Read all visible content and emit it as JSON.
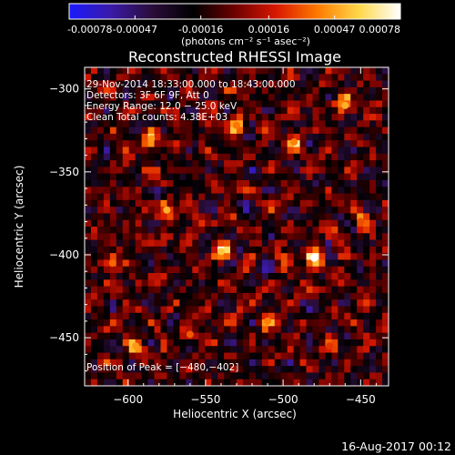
{
  "colors": {
    "background": "#000000",
    "text": "#ffffff",
    "colormap": [
      "#1a1aff",
      "#3a1aa8",
      "#2a0d3a",
      "#000000",
      "#6e0000",
      "#d81800",
      "#ff7a00",
      "#ffd84a",
      "#ffffff"
    ]
  },
  "colorbar": {
    "ticks": [
      "-0.00078",
      "-0.00047",
      "-0.00016",
      "0.00016",
      "0.00047",
      "0.00078"
    ],
    "units_label": "(photons cm⁻² s⁻¹ asec⁻²)",
    "range": [
      -0.00078,
      0.00078
    ]
  },
  "chart_data": {
    "type": "heatmap",
    "title": "Reconstructed RHESSI Image",
    "xlabel": "Heliocentric X (arcsec)",
    "ylabel": "Heliocentric Y (arcsec)",
    "xlim": [
      -628,
      -432
    ],
    "ylim": [
      -479,
      -287
    ],
    "x_ticks": [
      -600,
      -550,
      -500,
      -450
    ],
    "y_ticks": [
      -300,
      -350,
      -400,
      -450
    ],
    "x_tick_labels": [
      "−600",
      "−550",
      "−500",
      "−450"
    ],
    "y_tick_labels": [
      "−300",
      "−350",
      "−400",
      "−450"
    ],
    "info_lines": [
      "29-Nov-2014 18:33:00.000 to 18:43:00.000",
      "Detectors: 3F 6F 9F, Att 0",
      "Energy Range: 12.0 − 25.0 keV",
      "Clean     Total counts: 4.38E+03"
    ],
    "peak_label": "Position of Peak = [−480,−402]",
    "peak": {
      "x": -480,
      "y": -402
    },
    "hot_spots": [
      {
        "x": -480,
        "y": -402,
        "value": 0.00078
      },
      {
        "x": -575,
        "y": -373,
        "value": 0.0005
      },
      {
        "x": -540,
        "y": -398,
        "value": 0.00055
      },
      {
        "x": -460,
        "y": -310,
        "value": 0.0005
      },
      {
        "x": -493,
        "y": -332,
        "value": 0.0004
      },
      {
        "x": -530,
        "y": -322,
        "value": 0.00038
      },
      {
        "x": -585,
        "y": -330,
        "value": 0.00045
      },
      {
        "x": -595,
        "y": -455,
        "value": 0.00045
      },
      {
        "x": -510,
        "y": -440,
        "value": 0.0004
      },
      {
        "x": -610,
        "y": -405,
        "value": 0.00035
      },
      {
        "x": -560,
        "y": -448,
        "value": 0.00032
      },
      {
        "x": -450,
        "y": -380,
        "value": 0.0003
      },
      {
        "x": -470,
        "y": -455,
        "value": 0.00025
      }
    ]
  },
  "footer": {
    "timestamp": "16-Aug-2017 00:12"
  }
}
